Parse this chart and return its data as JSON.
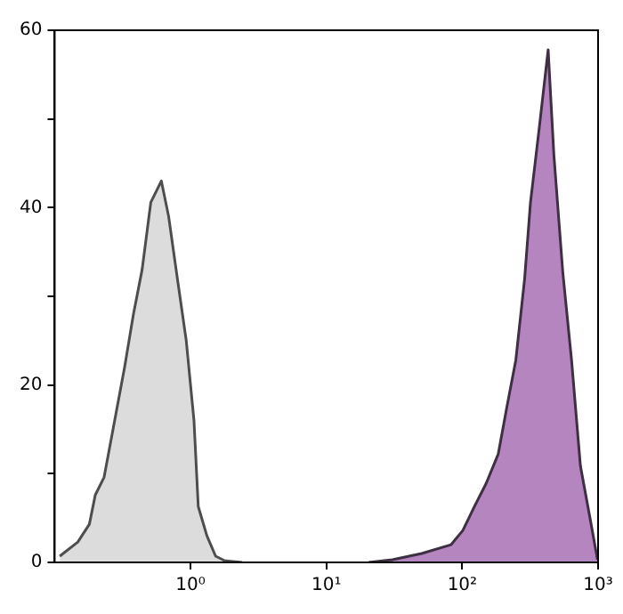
{
  "chart_data": {
    "type": "area",
    "xlim": [
      0.1,
      1000
    ],
    "ylim": [
      0,
      60
    ],
    "log": "x",
    "grid": false,
    "xticks": [
      {
        "value": 1,
        "label": "10⁰"
      },
      {
        "value": 10,
        "label": "10¹"
      },
      {
        "value": 100,
        "label": "10²"
      },
      {
        "value": 1000,
        "label": "10³"
      }
    ],
    "yticks": [
      0,
      {
        "value": 10,
        "label": null
      },
      20,
      {
        "value": 30,
        "label": null
      },
      40,
      {
        "value": 50,
        "label": null
      },
      60
    ],
    "series": [
      {
        "color": "#dcdcdc",
        "x": [
          0.109,
          0.148,
          0.18,
          0.199,
          0.231,
          0.268,
          0.327,
          0.38,
          0.44,
          0.51,
          0.61,
          0.69,
          0.8,
          0.93,
          1.06,
          1.14,
          1.32,
          1.53,
          1.78,
          2.4
        ],
        "values": [
          0.7,
          2.3,
          4.3,
          7.6,
          9.6,
          14.9,
          22,
          28,
          33,
          40.6,
          43,
          39,
          32,
          25,
          16,
          6.3,
          3,
          0.7,
          0.2,
          0
        ]
      },
      {
        "color": "#b585c0",
        "x": [
          20.5,
          30.6,
          50.3,
          82.8,
          101,
          123,
          150,
          184,
          213,
          248,
          288,
          318,
          369,
          429,
          473,
          550,
          638,
          741,
          906,
          990
        ],
        "values": [
          0,
          0.3,
          1,
          2,
          3.6,
          6.3,
          8.9,
          12.2,
          17.5,
          22.8,
          32,
          40.6,
          49,
          57.8,
          45.9,
          32.7,
          22.8,
          10.9,
          3.6,
          0.3
        ]
      }
    ]
  }
}
